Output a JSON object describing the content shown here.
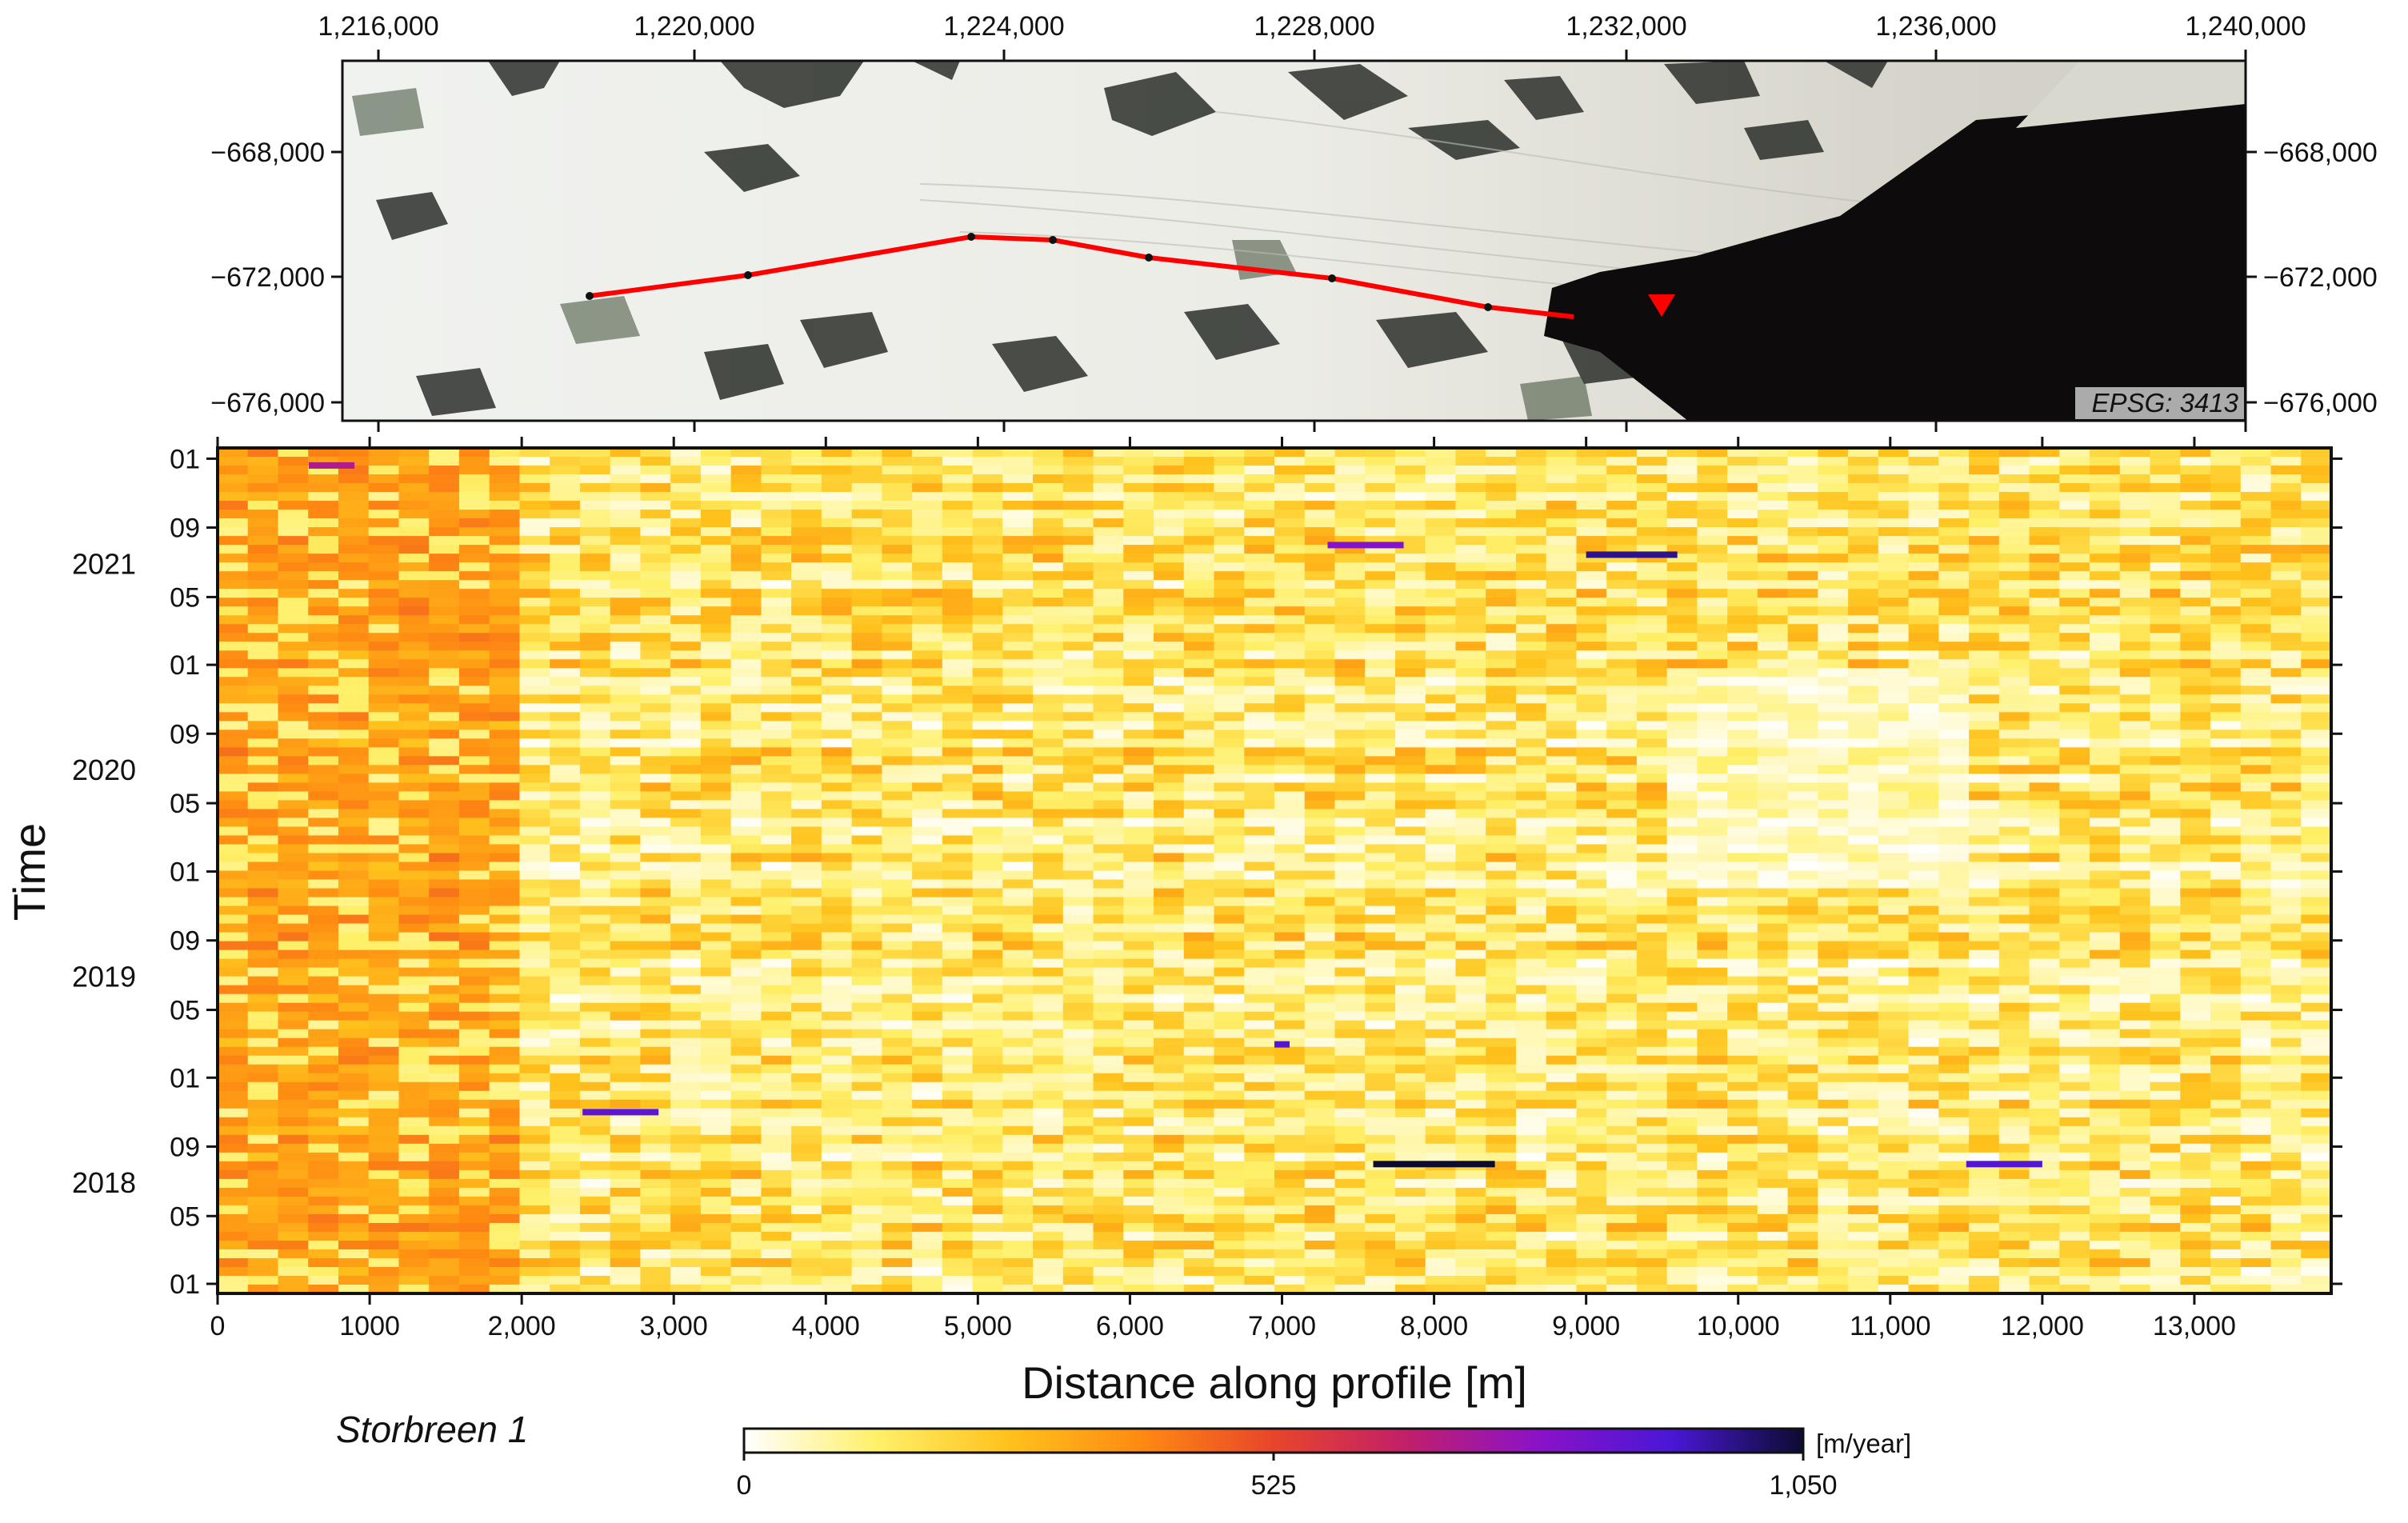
{
  "map_panel": {
    "x_ticks": [
      "1,216,000",
      "1,220,000",
      "1,224,000",
      "1,228,000",
      "1,232,000",
      "1,236,000",
      "1,240,000"
    ],
    "y_ticks": [
      "−668,000",
      "−672,000",
      "−676,000"
    ],
    "crs_label": "EPSG: 3413",
    "profile_color": "#ff0000",
    "terminus_marker_color": "#ff0000"
  },
  "chart_data": {
    "type": "heatmap",
    "title": "",
    "xlabel": "Distance along profile [m]",
    "ylabel": "Time",
    "xlim": [
      0,
      13900
    ],
    "ylim": [
      "2017-12-15",
      "2022-01-20"
    ],
    "x_ticks": [
      0,
      1000,
      2000,
      3000,
      4000,
      5000,
      6000,
      7000,
      8000,
      9000,
      10000,
      11000,
      12000,
      13000
    ],
    "x_tick_labels": [
      "0",
      "1000",
      "2,000",
      "3,000",
      "4,000",
      "5,000",
      "6,000",
      "7,000",
      "8,000",
      "9,000",
      "10,000",
      "11,000",
      "12,000",
      "13,000"
    ],
    "y_ticks": [
      "2018-01-01",
      "2018-05-01",
      "2018-09-01",
      "2019-01-01",
      "2019-05-01",
      "2019-09-01",
      "2020-01-01",
      "2020-05-01",
      "2020-09-01",
      "2021-01-01",
      "2021-05-01",
      "2021-09-01",
      "2022-01-01"
    ],
    "y_tick_labels": [
      "01",
      "05",
      "09",
      "01",
      "05",
      "09",
      "01",
      "05",
      "09",
      "01",
      "05",
      "09",
      "01"
    ],
    "year_labels": [
      {
        "label": "2018",
        "date": "2018-07-01"
      },
      {
        "label": "2019",
        "date": "2019-07-01"
      },
      {
        "label": "2020",
        "date": "2020-07-01"
      },
      {
        "label": "2021",
        "date": "2021-07-01"
      }
    ],
    "colorbar": {
      "min": 0,
      "max": 1050,
      "tick_values": [
        0,
        525,
        1050
      ],
      "tick_labels": [
        "0",
        "525",
        "1,050"
      ],
      "unit": "[m/year]",
      "colors": [
        "#ffffff",
        "#fff06a",
        "#ffc21c",
        "#ff8a12",
        "#e8452a",
        "#c21f6a",
        "#8a12c8",
        "#4a17d6",
        "#0c0c30"
      ]
    },
    "velocity_estimates": [
      {
        "x_range": [
          0,
          2000
        ],
        "value_range": [
          250,
          450
        ]
      },
      {
        "x_range": [
          2000,
          13900
        ],
        "value_range": [
          0,
          350
        ]
      }
    ],
    "notable_high_values": [
      {
        "date": "2018-08-01",
        "x_range": [
          7600,
          8400
        ],
        "value": 1050
      },
      {
        "date": "2018-08-01",
        "x_range": [
          11500,
          12000
        ],
        "value": 900
      },
      {
        "date": "2018-11-01",
        "x_range": [
          2400,
          2900
        ],
        "value": 880
      },
      {
        "date": "2019-03-01",
        "x_range": [
          6950,
          7050
        ],
        "value": 900
      },
      {
        "date": "2021-07-15",
        "x_range": [
          9000,
          9600
        ],
        "value": 980
      },
      {
        "date": "2021-08-01",
        "x_range": [
          7300,
          7800
        ],
        "value": 800
      },
      {
        "date": "2021-12-20",
        "x_range": [
          600,
          900
        ],
        "value": 700
      }
    ]
  },
  "panel_label": "Storbreen 1"
}
